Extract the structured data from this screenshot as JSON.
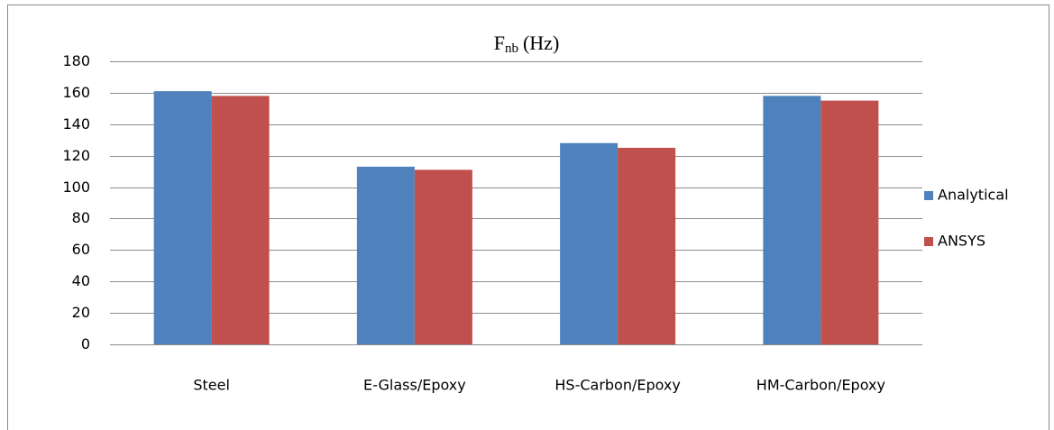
{
  "chart_data": {
    "type": "bar",
    "title": {
      "text": "F",
      "subscript": "nb",
      "suffix": "(Hz)"
    },
    "categories": [
      "Steel",
      "E-Glass/Epoxy",
      "HS-Carbon/Epoxy",
      "HM-Carbon/Epoxy"
    ],
    "series": [
      {
        "name": "Analytical",
        "color": "#4f81bd",
        "values": [
          161,
          113,
          128,
          158
        ]
      },
      {
        "name": "ANSYS",
        "color": "#c0504d",
        "values": [
          158,
          111,
          125,
          155
        ]
      }
    ],
    "ylim": [
      0,
      180
    ],
    "yticks": [
      0,
      20,
      40,
      60,
      80,
      100,
      120,
      140,
      160,
      180
    ],
    "grid": true,
    "legend": "right"
  }
}
